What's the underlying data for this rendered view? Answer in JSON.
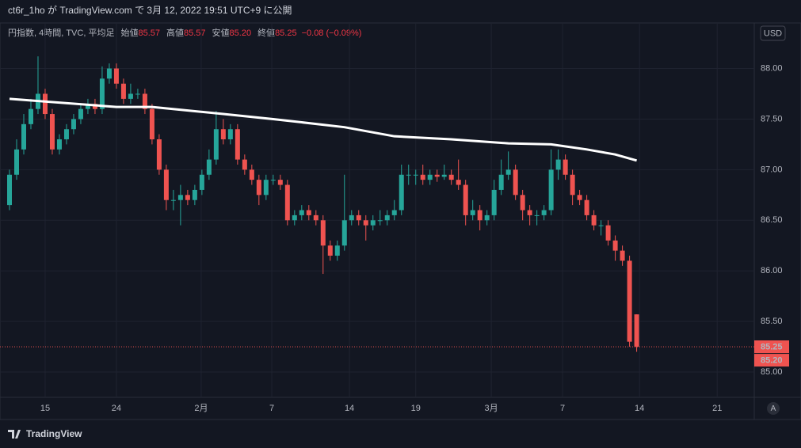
{
  "header": {
    "text": "ct6r_1ho が TradingView.com で 3月 12, 2022 19:51 UTC+9 に公開"
  },
  "footer": {
    "brand": "TradingView"
  },
  "chart_data": {
    "type": "candlestick",
    "legend": {
      "symbol": "円指数, 4時間, TVC, 平均足",
      "open_label": "始値",
      "open": "85.57",
      "high_label": "高値",
      "high": "85.57",
      "low_label": "安値",
      "low": "85.20",
      "close_label": "終値",
      "close": "85.25",
      "change": "−0.08 (−0.09%)"
    },
    "currency": "USD",
    "scale_button": "A",
    "up_color": "#26a69a",
    "down_color": "#ef5350",
    "xlim": [
      0,
      104.5
    ],
    "xticks": [
      {
        "value": 5,
        "label": "15"
      },
      {
        "value": 15,
        "label": "24"
      },
      {
        "value": 26.9,
        "label": "2月"
      },
      {
        "value": 36.8,
        "label": "7"
      },
      {
        "value": 47.7,
        "label": "14"
      },
      {
        "value": 57,
        "label": "19"
      },
      {
        "value": 67.6,
        "label": "3月"
      },
      {
        "value": 77.6,
        "label": "7"
      },
      {
        "value": 88.4,
        "label": "14"
      },
      {
        "value": 99.3,
        "label": "21"
      }
    ],
    "ylim": [
      84.75,
      88.45
    ],
    "yticks": [
      {
        "value": 85,
        "label": "85.00"
      },
      {
        "value": 85.5,
        "label": "85.50"
      },
      {
        "value": 86,
        "label": "86.00"
      },
      {
        "value": 86.5,
        "label": "86.50"
      },
      {
        "value": 87,
        "label": "87.00"
      },
      {
        "value": 87.5,
        "label": "87.50"
      },
      {
        "value": 88,
        "label": "88.00"
      }
    ],
    "grid": true,
    "price_tags": [
      {
        "value": 85.25,
        "label": "85.25"
      },
      {
        "value": 85.2,
        "label": "85.20"
      }
    ],
    "ohlc": [
      [
        86.65,
        87.0,
        86.6,
        86.95
      ],
      [
        86.95,
        87.3,
        86.9,
        87.2
      ],
      [
        87.2,
        87.55,
        87.15,
        87.45
      ],
      [
        87.45,
        87.7,
        87.4,
        87.6
      ],
      [
        87.6,
        88.12,
        87.55,
        87.75
      ],
      [
        87.75,
        87.8,
        87.5,
        87.55
      ],
      [
        87.55,
        87.6,
        87.15,
        87.2
      ],
      [
        87.2,
        87.35,
        87.15,
        87.3
      ],
      [
        87.3,
        87.45,
        87.25,
        87.4
      ],
      [
        87.4,
        87.55,
        87.35,
        87.5
      ],
      [
        87.5,
        87.65,
        87.45,
        87.6
      ],
      [
        87.6,
        87.7,
        87.55,
        87.65
      ],
      [
        87.65,
        87.7,
        87.55,
        87.6
      ],
      [
        87.6,
        88.02,
        87.55,
        87.9
      ],
      [
        87.9,
        88.05,
        87.85,
        88.0
      ],
      [
        88.0,
        88.05,
        87.8,
        87.85
      ],
      [
        87.85,
        87.9,
        87.65,
        87.7
      ],
      [
        87.7,
        87.85,
        87.65,
        87.75
      ],
      [
        87.75,
        87.8,
        87.7,
        87.75
      ],
      [
        87.75,
        87.8,
        87.55,
        87.6
      ],
      [
        87.6,
        87.65,
        87.25,
        87.3
      ],
      [
        87.3,
        87.35,
        86.95,
        87.0
      ],
      [
        87.0,
        87.05,
        86.6,
        86.7
      ],
      [
        86.7,
        86.8,
        86.6,
        86.7
      ],
      [
        86.7,
        86.85,
        86.45,
        86.75
      ],
      [
        86.75,
        86.8,
        86.65,
        86.7
      ],
      [
        86.7,
        86.85,
        86.65,
        86.8
      ],
      [
        86.8,
        87.0,
        86.75,
        86.95
      ],
      [
        86.95,
        87.2,
        86.9,
        87.1
      ],
      [
        87.1,
        87.58,
        87.05,
        87.4
      ],
      [
        87.4,
        87.5,
        87.25,
        87.3
      ],
      [
        87.3,
        87.45,
        87.25,
        87.4
      ],
      [
        87.4,
        87.45,
        87.05,
        87.1
      ],
      [
        87.1,
        87.15,
        86.95,
        87.0
      ],
      [
        87.0,
        87.05,
        86.85,
        86.9
      ],
      [
        86.9,
        86.95,
        86.65,
        86.75
      ],
      [
        86.75,
        86.95,
        86.7,
        86.9
      ],
      [
        86.9,
        86.95,
        86.85,
        86.9
      ],
      [
        86.9,
        86.95,
        86.8,
        86.85
      ],
      [
        86.85,
        86.9,
        86.45,
        86.5
      ],
      [
        86.5,
        86.6,
        86.45,
        86.55
      ],
      [
        86.55,
        86.65,
        86.5,
        86.6
      ],
      [
        86.6,
        86.65,
        86.5,
        86.55
      ],
      [
        86.55,
        86.6,
        86.45,
        86.5
      ],
      [
        86.5,
        86.55,
        85.97,
        86.25
      ],
      [
        86.25,
        86.3,
        86.1,
        86.15
      ],
      [
        86.15,
        86.3,
        86.1,
        86.25
      ],
      [
        86.25,
        86.95,
        86.2,
        86.5
      ],
      [
        86.5,
        86.6,
        86.45,
        86.55
      ],
      [
        86.55,
        86.6,
        86.45,
        86.5
      ],
      [
        86.5,
        86.55,
        86.3,
        86.45
      ],
      [
        86.45,
        86.55,
        86.4,
        86.5
      ],
      [
        86.5,
        86.6,
        86.45,
        86.5
      ],
      [
        86.5,
        86.6,
        86.45,
        86.55
      ],
      [
        86.55,
        86.7,
        86.5,
        86.6
      ],
      [
        86.6,
        87.05,
        86.55,
        86.95
      ],
      [
        86.95,
        87.05,
        86.85,
        86.95
      ],
      [
        86.95,
        87.0,
        86.85,
        86.95
      ],
      [
        86.95,
        87.05,
        86.85,
        86.9
      ],
      [
        86.9,
        87.0,
        86.85,
        86.95
      ],
      [
        86.95,
        87.0,
        86.88,
        86.93
      ],
      [
        86.93,
        87.05,
        86.9,
        86.95
      ],
      [
        86.95,
        87.0,
        86.85,
        86.9
      ],
      [
        86.9,
        87.1,
        86.8,
        86.85
      ],
      [
        86.85,
        86.9,
        86.45,
        86.55
      ],
      [
        86.55,
        86.7,
        86.5,
        86.6
      ],
      [
        86.6,
        86.65,
        86.4,
        86.5
      ],
      [
        86.5,
        86.6,
        86.45,
        86.55
      ],
      [
        86.55,
        86.9,
        86.5,
        86.8
      ],
      [
        86.8,
        87.1,
        86.75,
        86.95
      ],
      [
        86.95,
        87.18,
        86.9,
        87.0
      ],
      [
        87.0,
        87.05,
        86.7,
        86.75
      ],
      [
        86.75,
        86.8,
        86.5,
        86.6
      ],
      [
        86.6,
        86.65,
        86.45,
        86.55
      ],
      [
        86.55,
        86.6,
        86.45,
        86.55
      ],
      [
        86.55,
        86.65,
        86.5,
        86.6
      ],
      [
        86.6,
        87.2,
        86.55,
        87.0
      ],
      [
        87.0,
        87.2,
        86.9,
        87.1
      ],
      [
        87.1,
        87.15,
        86.9,
        86.95
      ],
      [
        86.95,
        87.0,
        86.65,
        86.75
      ],
      [
        86.75,
        86.8,
        86.65,
        86.7
      ],
      [
        86.7,
        86.75,
        86.5,
        86.55
      ],
      [
        86.55,
        86.6,
        86.4,
        86.45
      ],
      [
        86.45,
        86.5,
        86.35,
        86.45
      ],
      [
        86.45,
        86.5,
        86.25,
        86.3
      ],
      [
        86.3,
        86.35,
        86.1,
        86.2
      ],
      [
        86.2,
        86.25,
        86.05,
        86.1
      ],
      [
        86.1,
        86.15,
        85.25,
        85.3
      ],
      [
        85.57,
        85.57,
        85.2,
        85.25
      ]
    ],
    "ma_line": {
      "color": "#ffffff",
      "x": [
        0,
        15,
        20,
        30,
        37,
        47,
        54,
        62,
        70,
        76,
        81,
        85,
        88
      ],
      "values": [
        87.7,
        87.62,
        87.62,
        87.55,
        87.5,
        87.42,
        87.33,
        87.3,
        87.26,
        87.25,
        87.2,
        87.15,
        87.09
      ]
    }
  }
}
